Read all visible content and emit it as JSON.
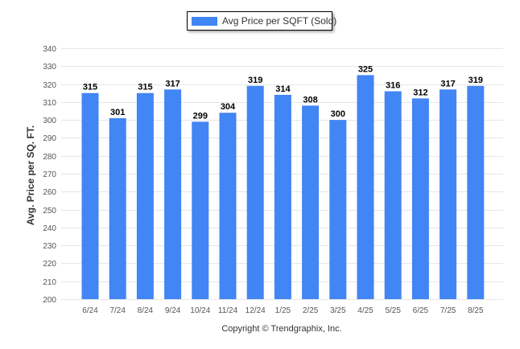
{
  "chart_data": {
    "type": "bar",
    "categories": [
      "6/24",
      "7/24",
      "8/24",
      "9/24",
      "10/24",
      "11/24",
      "12/24",
      "1/25",
      "2/25",
      "3/25",
      "4/25",
      "5/25",
      "6/25",
      "7/25",
      "8/25"
    ],
    "series": [
      {
        "name": "Avg Price per SQFT (Sold)",
        "values": [
          315,
          301,
          315,
          317,
          299,
          304,
          319,
          314,
          308,
          300,
          325,
          316,
          312,
          317,
          319
        ]
      }
    ],
    "ylabel": "Avg. Price per SQ. FT.",
    "xlabel": "",
    "ylim": [
      200,
      340
    ],
    "yticks": [
      200,
      210,
      220,
      230,
      240,
      250,
      260,
      270,
      280,
      290,
      300,
      310,
      320,
      330,
      340
    ],
    "grid": true,
    "legend_position": "top-center",
    "show_data_labels": true,
    "colors": {
      "bar": "#4285f4",
      "grid": "#e6e6e6"
    }
  },
  "footer": {
    "copyright": "Copyright © Trendgraphix, Inc."
  }
}
